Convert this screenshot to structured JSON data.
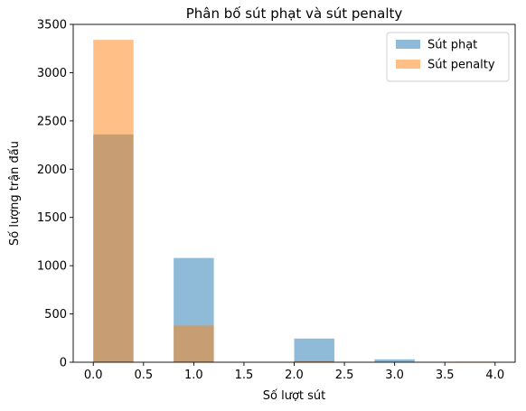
{
  "chart_data": {
    "type": "bar",
    "title": "Phân bố sút phạt và sút penalty",
    "xlabel": "Số lượt sút",
    "ylabel": "Số lượng trận đấu",
    "xlim": [
      -0.2,
      4.2
    ],
    "ylim": [
      0,
      3500
    ],
    "xticks": [
      0.0,
      0.5,
      1.0,
      1.5,
      2.0,
      2.5,
      3.0,
      3.5,
      4.0
    ],
    "xtick_labels": [
      "0.0",
      "0.5",
      "1.0",
      "1.5",
      "2.0",
      "2.5",
      "3.0",
      "3.5",
      "4.0"
    ],
    "yticks": [
      0,
      500,
      1000,
      1500,
      2000,
      2500,
      3000,
      3500
    ],
    "ytick_labels": [
      "0",
      "500",
      "1000",
      "1500",
      "2000",
      "2500",
      "3000",
      "3500"
    ],
    "grid": false,
    "legend_position": "top-right",
    "series": [
      {
        "name": "Sút phạt",
        "color": "#1f77b4",
        "opacity": 0.5,
        "bins": [
          {
            "x0": 0.0,
            "x1": 0.4,
            "value": 2360
          },
          {
            "x0": 0.8,
            "x1": 1.2,
            "value": 1080
          },
          {
            "x0": 2.0,
            "x1": 2.4,
            "value": 245
          },
          {
            "x0": 2.8,
            "x1": 3.2,
            "value": 30
          }
        ]
      },
      {
        "name": "Sút penalty",
        "color": "#ff7f0e",
        "opacity": 0.5,
        "bins": [
          {
            "x0": 0.0,
            "x1": 0.4,
            "value": 3340
          },
          {
            "x0": 0.8,
            "x1": 1.2,
            "value": 380
          },
          {
            "x0": 2.0,
            "x1": 2.4,
            "value": 15
          },
          {
            "x0": 3.6,
            "x1": 4.0,
            "value": 2
          }
        ]
      }
    ]
  }
}
